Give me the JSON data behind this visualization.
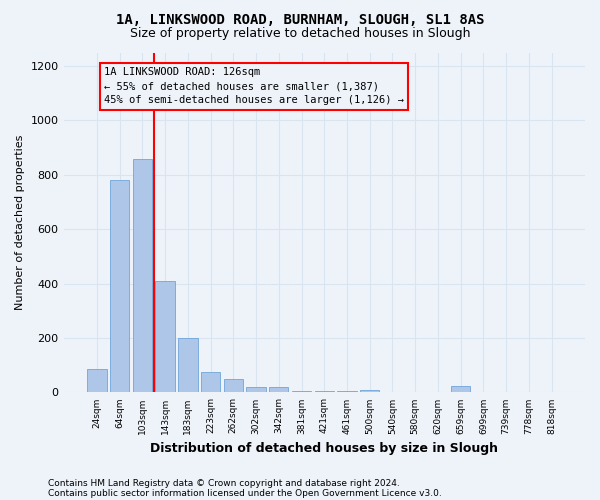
{
  "title1": "1A, LINKSWOOD ROAD, BURNHAM, SLOUGH, SL1 8AS",
  "title2": "Size of property relative to detached houses in Slough",
  "xlabel": "Distribution of detached houses by size in Slough",
  "ylabel": "Number of detached properties",
  "categories": [
    "24sqm",
    "64sqm",
    "103sqm",
    "143sqm",
    "183sqm",
    "223sqm",
    "262sqm",
    "302sqm",
    "342sqm",
    "381sqm",
    "421sqm",
    "461sqm",
    "500sqm",
    "540sqm",
    "580sqm",
    "620sqm",
    "659sqm",
    "699sqm",
    "739sqm",
    "778sqm",
    "818sqm"
  ],
  "values": [
    85,
    780,
    858,
    410,
    200,
    75,
    50,
    20,
    20,
    5,
    5,
    5,
    10,
    0,
    0,
    0,
    25,
    0,
    0,
    0,
    0
  ],
  "bar_color": "#aec6e8",
  "bar_edge_color": "#5b9bd5",
  "grid_color": "#d8e4f0",
  "background_color": "#eef3fa",
  "property_line_color": "red",
  "annotation_line1": "1A LINKSWOOD ROAD: 126sqm",
  "annotation_line2": "← 55% of detached houses are smaller (1,387)",
  "annotation_line3": "45% of semi-detached houses are larger (1,126) →",
  "annotation_box_color": "red",
  "footer1": "Contains HM Land Registry data © Crown copyright and database right 2024.",
  "footer2": "Contains public sector information licensed under the Open Government Licence v3.0.",
  "ylim": [
    0,
    1250
  ],
  "yticks": [
    0,
    200,
    400,
    600,
    800,
    1000,
    1200
  ]
}
